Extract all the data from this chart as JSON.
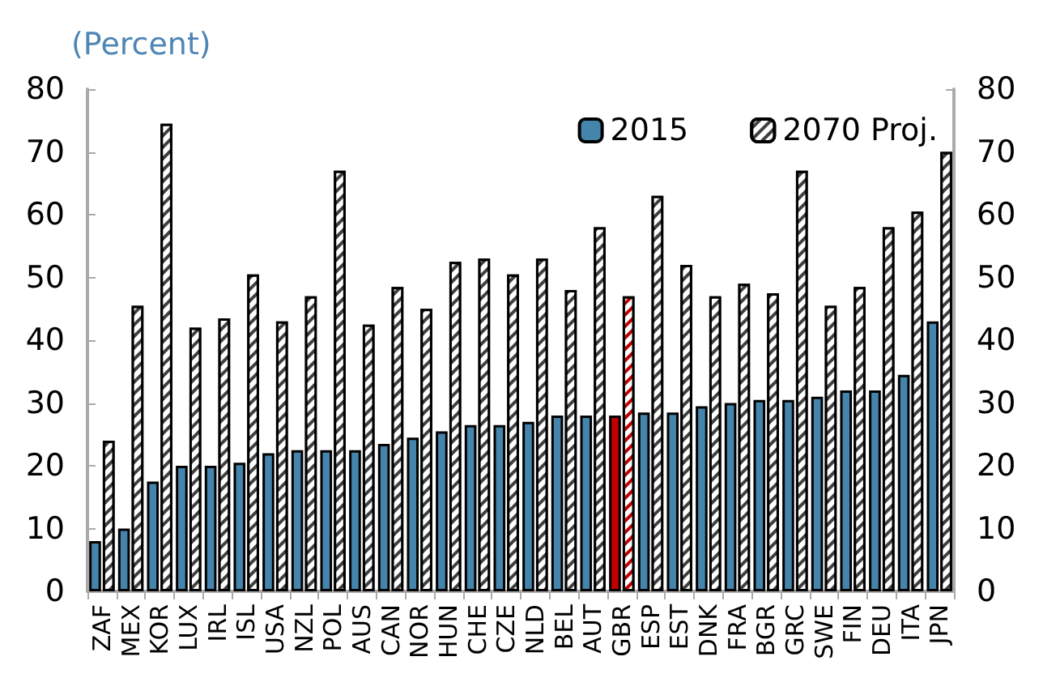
{
  "chart_data": {
    "type": "bar",
    "ylabel": "(Percent)",
    "categories": [
      "ZAF",
      "MEX",
      "KOR",
      "LUX",
      "IRL",
      "ISL",
      "USA",
      "NZL",
      "POL",
      "AUS",
      "CAN",
      "NOR",
      "HUN",
      "CHE",
      "CZE",
      "NLD",
      "BEL",
      "AUT",
      "GBR",
      "ESP",
      "EST",
      "DNK",
      "FRA",
      "BGR",
      "GRC",
      "SWE",
      "FIN",
      "DEU",
      "ITA",
      "JPN"
    ],
    "series": [
      {
        "name": "2015",
        "color": "#4585ac",
        "colors": [
          "#4585ac",
          "#4585ac",
          "#4585ac",
          "#4585ac",
          "#4585ac",
          "#4585ac",
          "#4585ac",
          "#4585ac",
          "#4585ac",
          "#4585ac",
          "#4585ac",
          "#4585ac",
          "#4585ac",
          "#4585ac",
          "#4585ac",
          "#4585ac",
          "#4585ac",
          "#4585ac",
          "#c00000",
          "#4585ac",
          "#4585ac",
          "#4585ac",
          "#4585ac",
          "#4585ac",
          "#4585ac",
          "#4585ac",
          "#4585ac",
          "#4585ac",
          "#4585ac",
          "#4585ac"
        ],
        "values": [
          8,
          10,
          17.5,
          20,
          20,
          20.5,
          22,
          22.5,
          22.5,
          22.5,
          23.5,
          24.5,
          25.5,
          26.5,
          26.5,
          27,
          28,
          28,
          28,
          28.5,
          28.5,
          29.5,
          30,
          30.5,
          30.5,
          31,
          32,
          32,
          34.5,
          43
        ]
      },
      {
        "name": "2070 Proj.",
        "color": "#404040",
        "colors": [
          "#404040",
          "#404040",
          "#404040",
          "#404040",
          "#404040",
          "#404040",
          "#404040",
          "#404040",
          "#404040",
          "#404040",
          "#404040",
          "#404040",
          "#404040",
          "#404040",
          "#404040",
          "#404040",
          "#404040",
          "#404040",
          "#c00000",
          "#404040",
          "#404040",
          "#404040",
          "#404040",
          "#404040",
          "#404040",
          "#404040",
          "#404040",
          "#404040",
          "#404040",
          "#404040"
        ],
        "values": [
          24,
          45.5,
          74.5,
          42,
          43.5,
          50.5,
          43,
          47,
          67,
          42.5,
          48.5,
          45,
          52.5,
          53,
          50.5,
          53,
          48,
          58,
          47,
          63,
          52,
          47,
          49,
          47.5,
          67,
          45.5,
          48.5,
          58,
          60.5,
          70
        ]
      }
    ],
    "ylim": [
      0,
      80
    ],
    "yticks": [
      0,
      10,
      20,
      30,
      40,
      50,
      60,
      70,
      80
    ],
    "y2lim": [
      0,
      80
    ],
    "y2ticks": [
      0,
      10,
      20,
      30,
      40,
      50,
      60,
      70,
      80
    ],
    "legend": "top right",
    "grid": false
  }
}
